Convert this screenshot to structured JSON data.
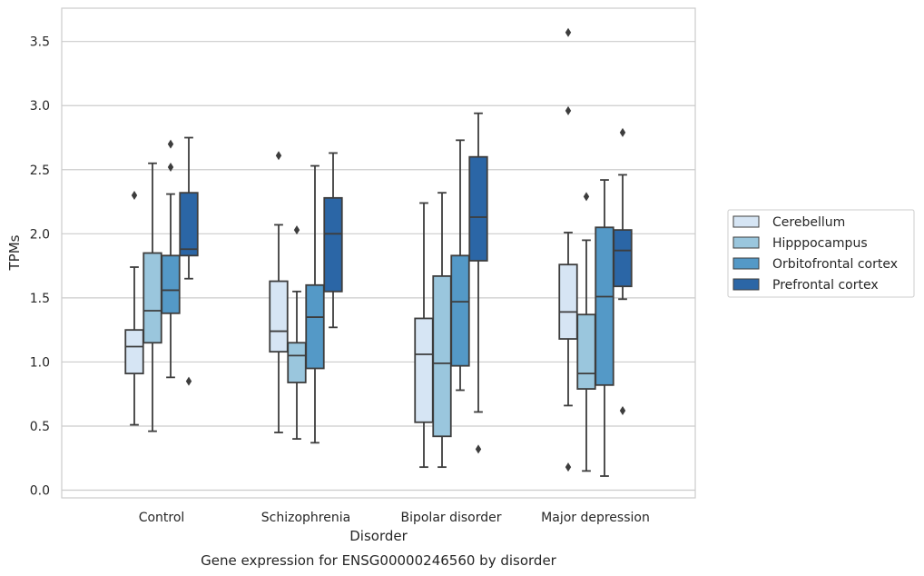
{
  "chart_data": {
    "type": "box",
    "title": "",
    "caption": "Gene expression for ENSG00000246560 by disorder",
    "xlabel": "Disorder",
    "ylabel": "TPMs",
    "ylim": [
      -0.06,
      3.76
    ],
    "yticks": [
      0.0,
      0.5,
      1.0,
      1.5,
      2.0,
      2.5,
      3.0,
      3.5
    ],
    "ytick_labels": [
      "0.0",
      "0.5",
      "1.0",
      "1.5",
      "2.0",
      "2.5",
      "3.0",
      "3.5"
    ],
    "grid": "horizontal",
    "legend_position": "right",
    "categories": [
      "Control",
      "Schizophrenia",
      "Bipolar disorder",
      "Major depression"
    ],
    "series": [
      {
        "name": "Cerebellum",
        "color": "#d6e5f4",
        "boxes": [
          {
            "whislo": 0.51,
            "q1": 0.91,
            "med": 1.12,
            "q3": 1.25,
            "whishi": 1.74,
            "fliers": [
              2.3
            ]
          },
          {
            "whislo": 0.45,
            "q1": 1.08,
            "med": 1.24,
            "q3": 1.63,
            "whishi": 2.07,
            "fliers": [
              2.61
            ]
          },
          {
            "whislo": 0.18,
            "q1": 0.53,
            "med": 1.06,
            "q3": 1.34,
            "whishi": 2.24,
            "fliers": []
          },
          {
            "whislo": 0.66,
            "q1": 1.18,
            "med": 1.39,
            "q3": 1.76,
            "whishi": 2.01,
            "fliers": [
              3.57,
              2.96,
              0.18
            ]
          }
        ]
      },
      {
        "name": "Hipppocampus",
        "color": "#9ac6dd",
        "boxes": [
          {
            "whislo": 0.46,
            "q1": 1.15,
            "med": 1.4,
            "q3": 1.85,
            "whishi": 2.55,
            "fliers": []
          },
          {
            "whislo": 0.4,
            "q1": 0.84,
            "med": 1.05,
            "q3": 1.15,
            "whishi": 1.55,
            "fliers": [
              2.03
            ]
          },
          {
            "whislo": 0.18,
            "q1": 0.42,
            "med": 0.99,
            "q3": 1.67,
            "whishi": 2.32,
            "fliers": []
          },
          {
            "whislo": 0.15,
            "q1": 0.79,
            "med": 0.91,
            "q3": 1.37,
            "whishi": 1.95,
            "fliers": [
              2.29
            ]
          }
        ]
      },
      {
        "name": "Orbitofrontal cortex",
        "color": "#5499c7",
        "boxes": [
          {
            "whislo": 0.88,
            "q1": 1.38,
            "med": 1.56,
            "q3": 1.83,
            "whishi": 2.31,
            "fliers": [
              2.7,
              2.52
            ]
          },
          {
            "whislo": 0.37,
            "q1": 0.95,
            "med": 1.35,
            "q3": 1.6,
            "whishi": 2.53,
            "fliers": []
          },
          {
            "whislo": 0.78,
            "q1": 0.97,
            "med": 1.47,
            "q3": 1.83,
            "whishi": 2.73,
            "fliers": []
          },
          {
            "whislo": 0.11,
            "q1": 0.82,
            "med": 1.51,
            "q3": 2.05,
            "whishi": 2.42,
            "fliers": []
          }
        ]
      },
      {
        "name": "Prefrontal cortex",
        "color": "#2b66a6",
        "boxes": [
          {
            "whislo": 1.65,
            "q1": 1.83,
            "med": 1.88,
            "q3": 2.32,
            "whishi": 2.75,
            "fliers": [
              0.85
            ]
          },
          {
            "whislo": 1.27,
            "q1": 1.55,
            "med": 2.0,
            "q3": 2.28,
            "whishi": 2.63,
            "fliers": []
          },
          {
            "whislo": 0.61,
            "q1": 1.79,
            "med": 2.13,
            "q3": 2.6,
            "whishi": 2.94,
            "fliers": [
              0.32
            ]
          },
          {
            "whislo": 1.49,
            "q1": 1.59,
            "med": 1.87,
            "q3": 2.03,
            "whishi": 2.46,
            "fliers": [
              2.79,
              0.62
            ]
          }
        ]
      }
    ]
  }
}
